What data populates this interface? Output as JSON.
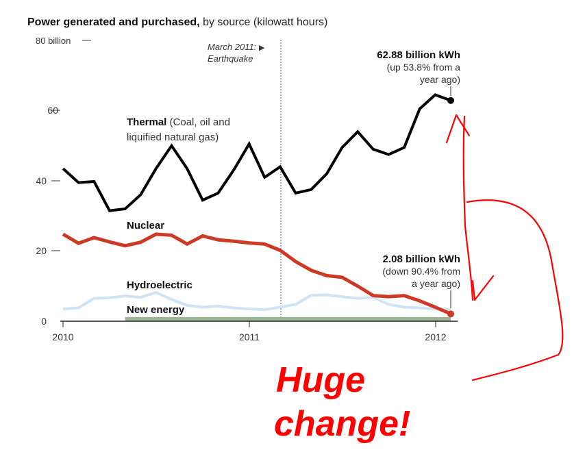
{
  "title_bold": "Power generated and purchased,",
  "title_rest": " by source (kilowatt hours)",
  "y_top_label": "80 billion",
  "event": {
    "line1": "March 2011:",
    "arrow": "▶",
    "line2": "Earthquake"
  },
  "labels": {
    "thermal": "Thermal",
    "thermal_desc_1": " (Coal, oil and",
    "thermal_desc_2": "liquified natural gas)",
    "nuclear": "Nuclear",
    "hydro": "Hydroelectric",
    "new_energy": "New energy"
  },
  "annotations": {
    "thermal": {
      "value": "62.88 billion kWh",
      "line1": "(up 53.8% from a",
      "line2": "year ago)"
    },
    "nuclear": {
      "value": "2.08 billion kWh",
      "line1": "(down 90.4% from",
      "line2": "a year ago)"
    }
  },
  "handwritten": {
    "line1": "Huge",
    "line2": "change!"
  },
  "colors": {
    "thermal": "#000000",
    "nuclear": "#cc3a26",
    "hydro": "#cfe3f4",
    "new_energy": "#9cb592",
    "scribble": "#ff0000"
  },
  "chart_data": {
    "type": "line",
    "title": "Power generated and purchased, by source (kilowatt hours)",
    "xlabel": "",
    "ylabel": "",
    "x_ticks": [
      "2010",
      "2011",
      "2012"
    ],
    "y_ticks": [
      "80 billion",
      "60",
      "40",
      "20",
      "0"
    ],
    "ylim": [
      0,
      80
    ],
    "x": [
      "2010-01",
      "2010-02",
      "2010-03",
      "2010-04",
      "2010-05",
      "2010-06",
      "2010-07",
      "2010-08",
      "2010-09",
      "2010-10",
      "2010-11",
      "2010-12",
      "2011-01",
      "2011-02",
      "2011-03",
      "2011-04",
      "2011-05",
      "2011-06",
      "2011-07",
      "2011-08",
      "2011-09",
      "2011-10",
      "2011-11",
      "2011-12",
      "2012-01",
      "2012-02"
    ],
    "series": [
      {
        "name": "Thermal",
        "values": [
          43.5,
          39.5,
          39.8,
          31.5,
          32,
          36,
          43.5,
          50,
          43.5,
          34.5,
          36.5,
          43,
          50.5,
          41,
          44,
          36.5,
          37.5,
          42,
          49.5,
          54,
          49,
          47.5,
          49.5,
          60.5,
          64.5,
          62.88
        ]
      },
      {
        "name": "Nuclear",
        "values": [
          24.8,
          22.2,
          23.8,
          22.6,
          21.5,
          22.5,
          24.8,
          24.5,
          22,
          24.3,
          23.2,
          22.8,
          22.3,
          22,
          20.2,
          17,
          14.5,
          13,
          12.5,
          10,
          7.3,
          7,
          7.3,
          5.8,
          4,
          2.08
        ]
      },
      {
        "name": "Hydroelectric",
        "values": [
          3.5,
          3.8,
          6.5,
          6.7,
          7.2,
          6.8,
          8.2,
          6.2,
          4.5,
          4,
          4.3,
          3.8,
          3.5,
          3.3,
          4,
          4.8,
          7.4,
          7.5,
          7,
          6.5,
          6.8,
          4.8,
          4,
          3.8,
          3.5,
          3.4
        ]
      },
      {
        "name": "New energy",
        "values": [
          null,
          null,
          null,
          null,
          0.6,
          0.6,
          0.6,
          0.6,
          0.6,
          0.6,
          0.6,
          0.6,
          0.6,
          0.6,
          0.6,
          0.6,
          0.6,
          0.6,
          0.6,
          0.6,
          0.6,
          0.6,
          0.6,
          0.6,
          0.6,
          0.6
        ]
      }
    ],
    "event_marker": {
      "x": "2011-03",
      "label": "March 2011: Earthquake"
    },
    "grid": false,
    "legend": "inline labels"
  }
}
